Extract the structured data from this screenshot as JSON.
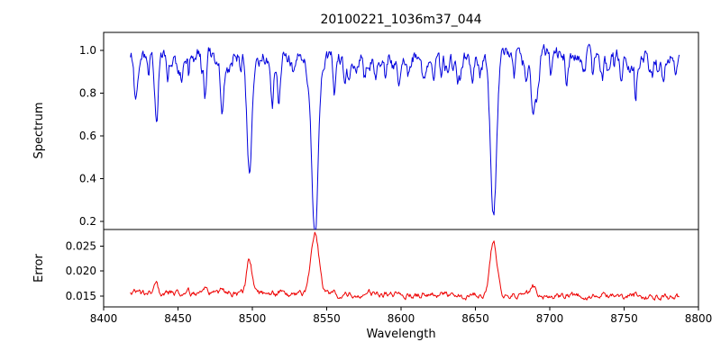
{
  "chart_data": {
    "type": "line",
    "title": "20100221_1036m37_044",
    "xlabel": "Wavelength",
    "xlim": [
      8400,
      8800
    ],
    "xticks": [
      8400,
      8450,
      8500,
      8550,
      8600,
      8650,
      8700,
      8750,
      8800
    ],
    "xtick_labels": [
      "8400",
      "8450",
      "8500",
      "8550",
      "8600",
      "8650",
      "8700",
      "8750",
      "8800"
    ],
    "x_range": {
      "start": 8418,
      "end": 8787,
      "step": 0.5
    },
    "grid": false,
    "legend": "none",
    "panels": [
      {
        "name": "spectrum",
        "ylabel": "Spectrum",
        "color": "#0000dd",
        "ylim": [
          0.163,
          1.085
        ],
        "ytick_values": [
          0.2,
          0.4,
          0.6,
          0.8,
          1.0
        ],
        "ytick_labels": [
          "0.2",
          "0.4",
          "0.6",
          "0.8",
          "1.0"
        ],
        "continuum": 0.975,
        "noise_amplitude": 0.022
      },
      {
        "name": "error",
        "ylabel": "Error",
        "color": "#ee0000",
        "ylim": [
          0.0128,
          0.0283
        ],
        "ytick_values": [
          0.015,
          0.02,
          0.025
        ],
        "ytick_labels": [
          "0.015",
          "0.020",
          "0.025"
        ],
        "baseline_start": 0.0155,
        "baseline_end": 0.0147,
        "noise_amplitude": 0.00035,
        "peak_scale": 0.021,
        "weak_peak_scale": 0.004
      }
    ],
    "absorption_lines": [
      [
        8421.0,
        0.1,
        0.8
      ],
      [
        8430.0,
        0.1,
        0.8
      ],
      [
        8435.5,
        0.3,
        1.1
      ],
      [
        8443.0,
        0.1,
        0.9
      ],
      [
        8452.0,
        0.07,
        0.8
      ],
      [
        8468.3,
        0.2,
        1.0
      ],
      [
        8480.0,
        0.11,
        0.9
      ],
      [
        8498.0,
        0.57,
        1.6
      ],
      [
        8513.5,
        0.2,
        1.0
      ],
      [
        8517.5,
        0.17,
        0.9
      ],
      [
        8527.0,
        0.07,
        0.8
      ],
      [
        8542.1,
        0.76,
        2.4
      ],
      [
        8555.0,
        0.11,
        0.9
      ],
      [
        8565.0,
        0.08,
        0.8
      ],
      [
        8575.5,
        0.08,
        0.8
      ],
      [
        8583.0,
        0.12,
        0.9
      ],
      [
        8598.5,
        0.12,
        0.9
      ],
      [
        8604.5,
        0.08,
        0.8
      ],
      [
        8615.0,
        0.1,
        0.8
      ],
      [
        8622.0,
        0.1,
        0.8
      ],
      [
        8635.0,
        0.06,
        0.8
      ],
      [
        8648.0,
        0.07,
        0.8
      ],
      [
        8662.1,
        0.72,
        2.1
      ],
      [
        8676.0,
        0.1,
        0.8
      ],
      [
        8688.6,
        0.3,
        1.2
      ],
      [
        8701.0,
        0.08,
        0.8
      ],
      [
        8711.5,
        0.1,
        0.8
      ],
      [
        8723.0,
        0.08,
        0.8
      ],
      [
        8735.5,
        0.1,
        0.9
      ],
      [
        8748.0,
        0.08,
        0.8
      ],
      [
        8758.0,
        0.12,
        0.9
      ],
      [
        8773.0,
        0.1,
        0.8
      ]
    ],
    "weak_lines": {
      "count": 55,
      "depth_min": 0.02,
      "depth_max": 0.1,
      "width_min": 0.5,
      "width_max": 1.4,
      "seed": 42
    },
    "noise_seed": 7
  }
}
